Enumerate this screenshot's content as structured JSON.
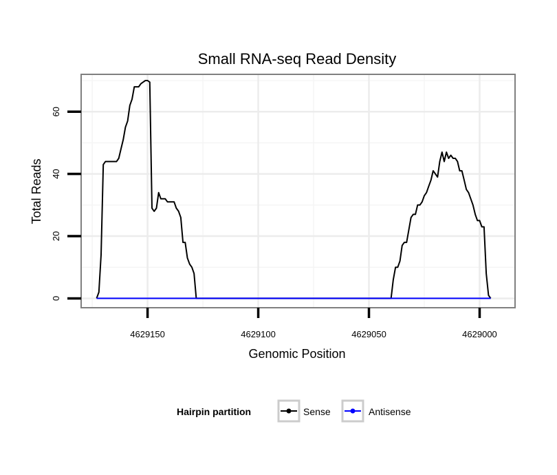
{
  "chart_data": {
    "type": "line",
    "title": "Small RNA-seq Read Density",
    "xlabel": "Genomic Position",
    "ylabel": "Total Reads",
    "x_reversed": true,
    "xlim": [
      4628984,
      4629180
    ],
    "ylim": [
      -3,
      72
    ],
    "x_ticks": [
      4629150,
      4629100,
      4629050,
      4629000
    ],
    "x_tick_labels": [
      "4629150",
      "4629100",
      "4629050",
      "4629000"
    ],
    "y_ticks": [
      0,
      20,
      40,
      60
    ],
    "y_tick_labels": [
      "0",
      "20",
      "40",
      "60"
    ],
    "grid": true,
    "legend": {
      "title": "Hairpin partition",
      "position": "bottom",
      "entries": [
        "Sense",
        "Antisense"
      ]
    },
    "series": [
      {
        "name": "Sense",
        "color": "#000000",
        "points": [
          [
            4629173,
            0
          ],
          [
            4629172,
            2
          ],
          [
            4629171,
            14
          ],
          [
            4629170,
            43
          ],
          [
            4629169,
            44
          ],
          [
            4629164,
            44
          ],
          [
            4629163,
            45
          ],
          [
            4629162,
            48
          ],
          [
            4629161,
            51
          ],
          [
            4629160,
            55
          ],
          [
            4629159,
            57
          ],
          [
            4629158,
            62
          ],
          [
            4629157,
            64
          ],
          [
            4629156,
            68
          ],
          [
            4629155,
            68
          ],
          [
            4629154,
            68
          ],
          [
            4629153,
            69
          ],
          [
            4629152,
            69.5
          ],
          [
            4629151,
            70
          ],
          [
            4629150,
            70
          ],
          [
            4629149,
            69.5
          ],
          [
            4629148,
            29
          ],
          [
            4629147,
            28
          ],
          [
            4629146,
            29
          ],
          [
            4629145,
            34
          ],
          [
            4629144,
            32
          ],
          [
            4629143,
            32
          ],
          [
            4629142,
            32
          ],
          [
            4629141,
            31
          ],
          [
            4629140,
            31
          ],
          [
            4629139,
            31
          ],
          [
            4629138,
            31
          ],
          [
            4629137,
            29
          ],
          [
            4629136,
            28
          ],
          [
            4629135,
            26
          ],
          [
            4629134,
            18
          ],
          [
            4629133,
            18
          ],
          [
            4629132,
            13
          ],
          [
            4629131,
            11
          ],
          [
            4629130,
            10
          ],
          [
            4629129,
            8
          ],
          [
            4629128,
            0
          ],
          [
            4629040,
            0
          ],
          [
            4629039,
            6
          ],
          [
            4629038,
            10
          ],
          [
            4629037,
            10
          ],
          [
            4629036,
            12
          ],
          [
            4629035,
            17
          ],
          [
            4629034,
            18
          ],
          [
            4629033,
            18
          ],
          [
            4629032,
            22
          ],
          [
            4629031,
            26
          ],
          [
            4629030,
            27
          ],
          [
            4629029,
            27
          ],
          [
            4629028,
            30
          ],
          [
            4629027,
            30
          ],
          [
            4629026,
            31
          ],
          [
            4629025,
            33
          ],
          [
            4629024,
            34
          ],
          [
            4629023,
            36
          ],
          [
            4629022,
            38
          ],
          [
            4629021,
            41
          ],
          [
            4629020,
            40
          ],
          [
            4629019,
            39
          ],
          [
            4629018,
            44
          ],
          [
            4629017,
            47
          ],
          [
            4629016,
            44
          ],
          [
            4629015,
            47
          ],
          [
            4629014,
            45
          ],
          [
            4629013,
            46
          ],
          [
            4629012,
            45
          ],
          [
            4629011,
            45
          ],
          [
            4629010,
            44
          ],
          [
            4629009,
            41
          ],
          [
            4629008,
            41
          ],
          [
            4629007,
            38
          ],
          [
            4629006,
            35
          ],
          [
            4629005,
            34
          ],
          [
            4629004,
            32
          ],
          [
            4629003,
            30
          ],
          [
            4629002,
            27
          ],
          [
            4629001,
            25
          ],
          [
            4629000,
            25
          ],
          [
            4628999,
            23
          ],
          [
            4628998,
            23
          ],
          [
            4628997,
            8
          ],
          [
            4628996,
            1
          ],
          [
            4628995,
            0
          ]
        ]
      },
      {
        "name": "Antisense",
        "color": "#0000ff",
        "points": [
          [
            4629173,
            0
          ],
          [
            4628995,
            0
          ]
        ]
      }
    ]
  }
}
